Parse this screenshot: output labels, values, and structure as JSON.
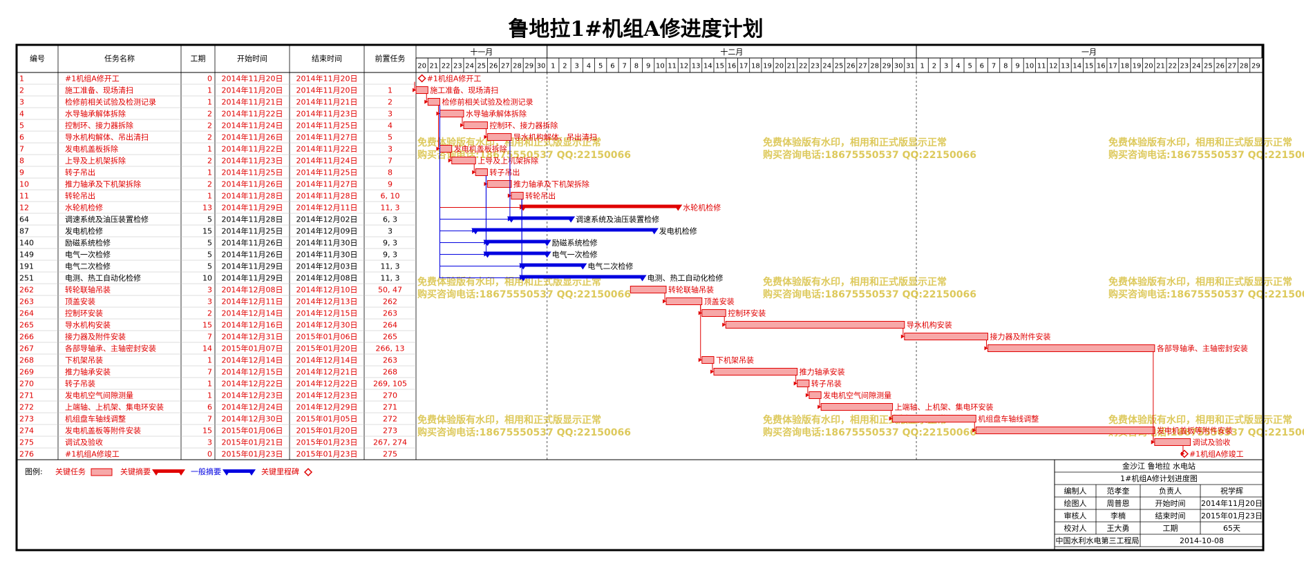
{
  "chart_data": {
    "type": "gantt",
    "title": "鲁地拉1#机组A修进度计划",
    "headers": [
      "编号",
      "任务名称",
      "工期",
      "开始时间",
      "结束时间",
      "前置任务"
    ],
    "timeline": {
      "months": [
        {
          "label": "十一月",
          "days": [
            20,
            21,
            22,
            23,
            24,
            25,
            26,
            27,
            28,
            29,
            30
          ]
        },
        {
          "label": "十二月",
          "days": [
            1,
            2,
            3,
            4,
            5,
            6,
            7,
            8,
            9,
            10,
            11,
            12,
            13,
            14,
            15,
            16,
            17,
            18,
            19,
            20,
            21,
            22,
            23,
            24,
            25,
            26,
            27,
            28,
            29,
            30,
            31
          ]
        },
        {
          "label": "一月",
          "days": [
            1,
            2,
            3,
            4,
            5,
            6,
            7,
            8,
            9,
            10,
            11,
            12,
            13,
            14,
            15,
            16,
            17,
            18,
            19,
            20,
            21,
            22,
            23,
            24,
            25,
            26,
            27,
            28,
            29
          ]
        }
      ]
    },
    "rows": [
      {
        "cells": [
          "1",
          "#1机组A修开工",
          "0",
          "2014年11月20日",
          "2014年11月20日",
          ""
        ],
        "bar": "milestone",
        "text_color": "#e00000",
        "bar_color": "#e00000"
      },
      {
        "cells": [
          "2",
          "施工准备、现场清扫",
          "1",
          "2014年11月20日",
          "2014年11月20日",
          "1"
        ],
        "bar": "task",
        "text_color": "#e00000",
        "bar_color": "#e00000"
      },
      {
        "cells": [
          "3",
          "检修前相关试验及检测记录",
          "1",
          "2014年11月21日",
          "2014年11月21日",
          "2"
        ],
        "bar": "task",
        "text_color": "#e00000",
        "bar_color": "#e00000"
      },
      {
        "cells": [
          "4",
          "水导轴承解体拆除",
          "2",
          "2014年11月22日",
          "2014年11月23日",
          "3"
        ],
        "bar": "task",
        "text_color": "#e00000",
        "bar_color": "#e00000"
      },
      {
        "cells": [
          "5",
          "控制环、接力器拆除",
          "2",
          "2014年11月24日",
          "2014年11月25日",
          "4"
        ],
        "bar": "task",
        "text_color": "#e00000",
        "bar_color": "#e00000"
      },
      {
        "cells": [
          "6",
          "导水机构解体、吊出清扫",
          "2",
          "2014年11月26日",
          "2014年11月27日",
          "5"
        ],
        "bar": "task",
        "text_color": "#e00000",
        "bar_color": "#e00000"
      },
      {
        "cells": [
          "7",
          "发电机盖板拆除",
          "1",
          "2014年11月22日",
          "2014年11月22日",
          "3"
        ],
        "bar": "task",
        "text_color": "#e00000",
        "bar_color": "#e00000"
      },
      {
        "cells": [
          "8",
          "上导及上机架拆除",
          "2",
          "2014年11月23日",
          "2014年11月24日",
          "7"
        ],
        "bar": "task",
        "text_color": "#e00000",
        "bar_color": "#e00000"
      },
      {
        "cells": [
          "9",
          "转子吊出",
          "1",
          "2014年11月25日",
          "2014年11月25日",
          "8"
        ],
        "bar": "task",
        "text_color": "#e00000",
        "bar_color": "#e00000"
      },
      {
        "cells": [
          "10",
          "推力轴承及下机架拆除",
          "2",
          "2014年11月26日",
          "2014年11月27日",
          "9"
        ],
        "bar": "task",
        "text_color": "#e00000",
        "bar_color": "#e00000"
      },
      {
        "cells": [
          "11",
          "转轮吊出",
          "1",
          "2014年11月28日",
          "2014年11月28日",
          "6, 10"
        ],
        "bar": "task",
        "text_color": "#e00000",
        "bar_color": "#e00000"
      },
      {
        "cells": [
          "12",
          "水轮机检修",
          "13",
          "2014年11月29日",
          "2014年12月11日",
          "11, 3"
        ],
        "bar": "summary",
        "text_color": "#e00000",
        "bar_color": "#e00000"
      },
      {
        "cells": [
          "64",
          "调速系统及油压装置检修",
          "5",
          "2014年11月28日",
          "2014年12月02日",
          "6, 3"
        ],
        "bar": "summary",
        "text_color": "#000000",
        "bar_color": "#0000e0"
      },
      {
        "cells": [
          "87",
          "发电机检修",
          "15",
          "2014年11月25日",
          "2014年12月09日",
          "3"
        ],
        "bar": "summary",
        "text_color": "#000000",
        "bar_color": "#0000e0"
      },
      {
        "cells": [
          "140",
          "励磁系统检修",
          "5",
          "2014年11月26日",
          "2014年11月30日",
          "9, 3"
        ],
        "bar": "summary",
        "text_color": "#000000",
        "bar_color": "#0000e0"
      },
      {
        "cells": [
          "149",
          "电气一次检修",
          "5",
          "2014年11月26日",
          "2014年11月30日",
          "9, 3"
        ],
        "bar": "summary",
        "text_color": "#000000",
        "bar_color": "#0000e0"
      },
      {
        "cells": [
          "191",
          "电气二次检修",
          "5",
          "2014年11月29日",
          "2014年12月03日",
          "11, 3"
        ],
        "bar": "summary",
        "text_color": "#000000",
        "bar_color": "#0000e0"
      },
      {
        "cells": [
          "251",
          "电测、热工自动化检修",
          "10",
          "2014年11月29日",
          "2014年12月08日",
          "11, 3"
        ],
        "bar": "summary",
        "text_color": "#000000",
        "bar_color": "#0000e0"
      },
      {
        "cells": [
          "262",
          "转轮联轴吊装",
          "3",
          "2014年12月08日",
          "2014年12月10日",
          "50, 47"
        ],
        "bar": "task",
        "text_color": "#e00000",
        "bar_color": "#e00000"
      },
      {
        "cells": [
          "263",
          "顶盖安装",
          "3",
          "2014年12月11日",
          "2014年12月13日",
          "262"
        ],
        "bar": "task",
        "text_color": "#e00000",
        "bar_color": "#e00000"
      },
      {
        "cells": [
          "264",
          "控制环安装",
          "2",
          "2014年12月14日",
          "2014年12月15日",
          "263"
        ],
        "bar": "task",
        "text_color": "#e00000",
        "bar_color": "#e00000"
      },
      {
        "cells": [
          "265",
          "导水机构安装",
          "15",
          "2014年12月16日",
          "2014年12月30日",
          "264"
        ],
        "bar": "task",
        "text_color": "#e00000",
        "bar_color": "#e00000"
      },
      {
        "cells": [
          "266",
          "接力器及附件安装",
          "7",
          "2014年12月31日",
          "2015年01月06日",
          "265"
        ],
        "bar": "task",
        "text_color": "#e00000",
        "bar_color": "#e00000"
      },
      {
        "cells": [
          "267",
          "各部导轴承、主轴密封安装",
          "14",
          "2015年01月07日",
          "2015年01月20日",
          "266, 13"
        ],
        "bar": "task",
        "text_color": "#e00000",
        "bar_color": "#e00000"
      },
      {
        "cells": [
          "268",
          "下机架吊装",
          "1",
          "2014年12月14日",
          "2014年12月14日",
          "263"
        ],
        "bar": "task",
        "text_color": "#e00000",
        "bar_color": "#e00000"
      },
      {
        "cells": [
          "269",
          "推力轴承安装",
          "7",
          "2014年12月15日",
          "2014年12月21日",
          "268"
        ],
        "bar": "task",
        "text_color": "#e00000",
        "bar_color": "#e00000"
      },
      {
        "cells": [
          "270",
          "转子吊装",
          "1",
          "2014年12月22日",
          "2014年12月22日",
          "269, 105"
        ],
        "bar": "task",
        "text_color": "#e00000",
        "bar_color": "#e00000"
      },
      {
        "cells": [
          "271",
          "发电机空气间隙测量",
          "1",
          "2014年12月23日",
          "2014年12月23日",
          "270"
        ],
        "bar": "task",
        "text_color": "#e00000",
        "bar_color": "#e00000"
      },
      {
        "cells": [
          "272",
          "上端轴、上机架、集电环安装",
          "6",
          "2014年12月24日",
          "2014年12月29日",
          "271"
        ],
        "bar": "task",
        "text_color": "#e00000",
        "bar_color": "#e00000"
      },
      {
        "cells": [
          "273",
          "机组盘车轴线调整",
          "7",
          "2014年12月30日",
          "2015年01月05日",
          "272"
        ],
        "bar": "task",
        "text_color": "#e00000",
        "bar_color": "#e00000"
      },
      {
        "cells": [
          "274",
          "发电机盖板等附件安装",
          "15",
          "2015年01月06日",
          "2015年01月20日",
          "273"
        ],
        "bar": "task",
        "text_color": "#e00000",
        "bar_color": "#e00000"
      },
      {
        "cells": [
          "275",
          "调试及验收",
          "3",
          "2015年01月21日",
          "2015年01月23日",
          "267, 274"
        ],
        "bar": "task",
        "text_color": "#e00000",
        "bar_color": "#e00000"
      },
      {
        "cells": [
          "276",
          "#1机组A修竣工",
          "0",
          "2015年01月23日",
          "2015年01月23日",
          "275"
        ],
        "bar": "milestone",
        "text_color": "#e00000",
        "bar_color": "#e00000"
      }
    ],
    "legend": {
      "title": "图例:",
      "items": [
        {
          "label": "关键任务",
          "bar": "task",
          "color": "#e00000"
        },
        {
          "label": "关键摘要",
          "bar": "summary",
          "color": "#e00000"
        },
        {
          "label": "一般摘要",
          "bar": "summary",
          "color": "#0000e0"
        },
        {
          "label": "关键里程碑",
          "bar": "milestone",
          "color": "#e00000"
        }
      ]
    },
    "watermark": [
      "免费体验版有水印，相用和正式版显示正常",
      "购买咨询电话:18675550537 QQ:22150066"
    ],
    "info": {
      "project": "金沙江 鲁地拉 水电站",
      "drawing": "1#机组A修计划进度图",
      "rows": [
        [
          "编制人",
          "范孝奎",
          "负责人",
          "祝学辉"
        ],
        [
          "绘图人",
          "周普恩",
          "开始时间",
          "2014年11月20日"
        ],
        [
          "审核人",
          "李楠",
          "结束时间",
          "2015年01月23日"
        ],
        [
          "校对人",
          "王大勇",
          "工期",
          "65天"
        ]
      ],
      "org": "中国水利水电第三工程局",
      "date": "2014-10-08"
    }
  }
}
